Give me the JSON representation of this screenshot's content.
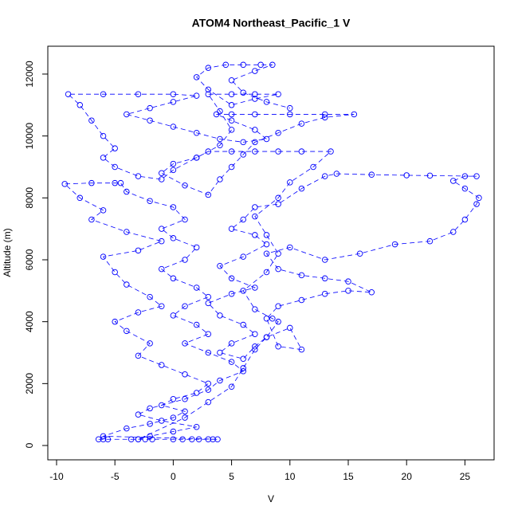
{
  "chart_data": {
    "type": "scatter",
    "title": "ATOM4 Northeast_Pacific_1 V",
    "x_label": "V",
    "y_label": "Altitude (m)",
    "xlim": [
      -10.75,
      27.5
    ],
    "ylim": [
      -463,
      12900
    ],
    "xticks": [
      -10,
      -5,
      0,
      5,
      10,
      15,
      20,
      25
    ],
    "yticks": [
      0,
      2000,
      4000,
      6000,
      8000,
      10000,
      12000
    ],
    "color": "#0000ff",
    "x": [
      -6.4,
      -6,
      -5.6,
      -3.6,
      -3,
      -2.4,
      -1.8,
      0,
      0.8,
      1.6,
      2.2,
      3,
      3.4,
      3.8,
      -6,
      -4,
      -2,
      0,
      1,
      -1,
      0,
      2,
      3,
      1,
      -1,
      -3,
      -2,
      -4,
      -5,
      -3,
      -1,
      -2,
      -4,
      -5,
      -6,
      -3,
      -1,
      -4,
      -7,
      -6,
      -8,
      -9.3,
      -7,
      -5,
      -4.5,
      -4,
      -2,
      0,
      1,
      -1,
      0,
      2,
      1,
      -1,
      0,
      2,
      3,
      1,
      0,
      2,
      3,
      1,
      3,
      5,
      6,
      4,
      3,
      1,
      -2,
      -3,
      -1,
      2,
      0,
      -2,
      -3,
      1,
      3,
      5,
      6,
      7,
      8,
      10,
      11,
      9,
      8,
      9,
      11,
      13,
      15,
      17,
      15,
      13,
      11,
      9,
      8,
      10,
      13,
      16,
      19,
      22,
      24,
      25,
      26,
      26.2,
      25,
      24,
      25,
      26,
      22,
      20,
      17,
      14,
      13,
      11,
      9,
      7,
      6,
      5,
      7,
      8,
      6,
      4,
      5,
      7,
      5,
      3,
      4,
      6,
      7,
      5,
      4,
      6,
      7,
      8,
      9,
      8.5,
      7,
      6,
      8,
      9,
      8,
      7,
      9,
      10,
      12,
      13.5,
      11,
      9,
      7,
      5,
      3,
      2,
      0,
      -1,
      1,
      3,
      4,
      5,
      6,
      7,
      9,
      11,
      13,
      15.5,
      13,
      10,
      7,
      5,
      3.7,
      5,
      7,
      8,
      6,
      4,
      2,
      0,
      -2,
      -4,
      -2,
      0,
      2,
      0,
      -3,
      -6,
      -9,
      -8,
      -7,
      -6,
      -5,
      -6,
      -5,
      -3,
      -1,
      0,
      2,
      4,
      5,
      4,
      3,
      5,
      7,
      9,
      7,
      5,
      3,
      2,
      3,
      4.5,
      6,
      7.5,
      8.5,
      7,
      5,
      6,
      8,
      10
    ],
    "values": [
      200,
      200,
      200,
      200,
      200,
      200,
      200,
      200,
      200,
      200,
      200,
      200,
      200,
      200,
      300,
      550,
      700,
      900,
      1100,
      1300,
      1500,
      1700,
      2000,
      2300,
      2600,
      2900,
      3300,
      3700,
      4000,
      4300,
      4500,
      4800,
      5200,
      5600,
      6100,
      6300,
      6600,
      6900,
      7300,
      7600,
      8000,
      8450,
      8480,
      8480,
      8480,
      8200,
      7900,
      7700,
      7300,
      7000,
      6700,
      6400,
      6000,
      5700,
      5400,
      5100,
      4800,
      4500,
      4200,
      3900,
      3600,
      3300,
      3000,
      2700,
      2400,
      2100,
      1800,
      1500,
      1200,
      1000,
      800,
      600,
      450,
      300,
      200,
      900,
      1400,
      1900,
      2500,
      3100,
      3500,
      3800,
      3100,
      3200,
      4100,
      4500,
      4700,
      4900,
      5000,
      4950,
      5300,
      5400,
      5500,
      5700,
      6200,
      6400,
      6000,
      6200,
      6500,
      6600,
      6900,
      7300,
      7800,
      8000,
      8300,
      8550,
      8700,
      8700,
      8720,
      8730,
      8750,
      8780,
      8700,
      8300,
      7800,
      7700,
      7300,
      7000,
      6800,
      6500,
      6100,
      5800,
      5400,
      5100,
      4900,
      4600,
      4200,
      3900,
      3600,
      3300,
      3000,
      2800,
      3200,
      3500,
      4000,
      4100,
      4400,
      5000,
      5600,
      6200,
      6800,
      7400,
      8000,
      8500,
      9000,
      9500,
      9500,
      9500,
      9500,
      9500,
      9500,
      9300,
      9100,
      8800,
      8400,
      8100,
      8600,
      9000,
      9400,
      9800,
      10100,
      10400,
      10600,
      10700,
      10700,
      10700,
      10700,
      10700,
      10700,
      10500,
      10200,
      9900,
      9800,
      9900,
      10100,
      10300,
      10500,
      10700,
      10900,
      11100,
      11300,
      11350,
      11350,
      11350,
      11350,
      11000,
      10500,
      10000,
      9600,
      9300,
      9000,
      8700,
      8600,
      8900,
      9300,
      9700,
      10200,
      10800,
      11350,
      11350,
      11350,
      11350,
      11200,
      11000,
      11500,
      11900,
      12200,
      12300,
      12300,
      12300,
      12300,
      12100,
      11800,
      11400,
      11100,
      10900
    ]
  }
}
